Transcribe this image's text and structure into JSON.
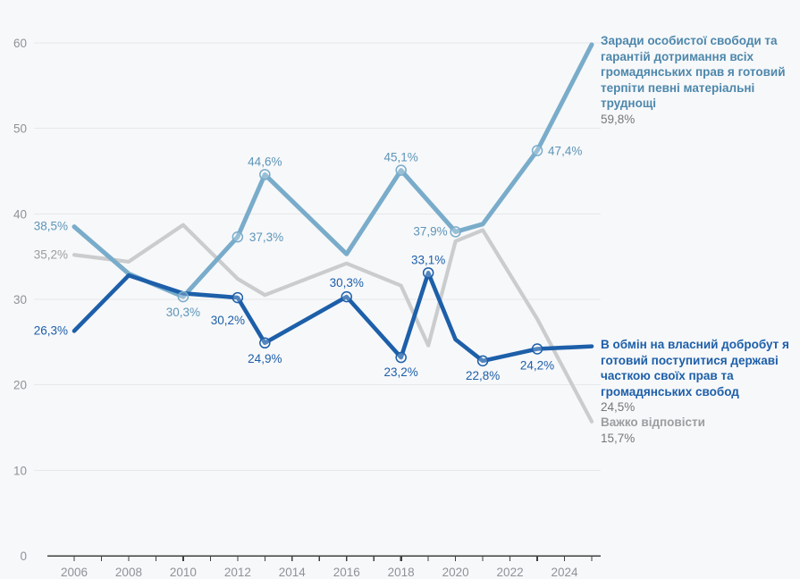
{
  "page": {
    "background": "#f7f8fa",
    "grid_color": "#e7e8ea",
    "axis_color": "#3f3f3f",
    "axis_label_color": "#8f9296"
  },
  "chart_data": {
    "type": "line",
    "title": "",
    "xlabel": "",
    "ylabel": "",
    "xlim": [
      2006,
      2025
    ],
    "ylim": [
      0,
      60
    ],
    "grid": true,
    "legend_position": "right",
    "y_ticks": [
      0,
      10,
      20,
      30,
      40,
      50,
      60
    ],
    "x_ticks": [
      2006,
      2007,
      2008,
      2009,
      2010,
      2011,
      2012,
      2013,
      2014,
      2015,
      2016,
      2017,
      2018,
      2019,
      2020,
      2021,
      2022,
      2023,
      2024,
      2025
    ],
    "x_label_years": [
      2006,
      2008,
      2010,
      2012,
      2014,
      2016,
      2018,
      2020,
      2022,
      2024
    ],
    "emphasized_x_ticks": [
      2010,
      2018,
      2023
    ],
    "series": [
      {
        "id": "hard-to-say",
        "name": "Важко відповісти",
        "color": "#cbcccd",
        "label_color": "#9b9da0",
        "stroke_width": 4.2,
        "final_value": "15,7%",
        "points": [
          {
            "x": 2006,
            "y": 35.2,
            "label": "35,2%",
            "anchor": "end",
            "dx": -7,
            "dy": 4
          },
          {
            "x": 2008,
            "y": 34.4
          },
          {
            "x": 2010,
            "y": 38.7
          },
          {
            "x": 2012,
            "y": 32.4
          },
          {
            "x": 2013,
            "y": 30.5
          },
          {
            "x": 2016,
            "y": 34.2
          },
          {
            "x": 2018,
            "y": 31.6
          },
          {
            "x": 2019,
            "y": 24.6
          },
          {
            "x": 2020,
            "y": 36.8
          },
          {
            "x": 2021,
            "y": 38.1
          },
          {
            "x": 2023,
            "y": 27.7
          },
          {
            "x": 2025,
            "y": 15.7
          }
        ]
      },
      {
        "id": "freedom",
        "name": "Заради особистої свободи та гарантій дотримання всіх громадянських прав я готовий терпіти певні матеріальні труднощі",
        "color": "#79acca",
        "label_color": "#5d95b8",
        "stroke_width": 5,
        "final_value": "59,8%",
        "points": [
          {
            "x": 2006,
            "y": 38.5,
            "label": "38,5%",
            "anchor": "end",
            "dx": -7,
            "dy": 4
          },
          {
            "x": 2008,
            "y": 33.0
          },
          {
            "x": 2010,
            "y": 30.3,
            "label": "30,3%",
            "marker": true,
            "anchor": "middle",
            "dx": 0,
            "dy": 22
          },
          {
            "x": 2012,
            "y": 37.3,
            "label": "37,3%",
            "marker": true,
            "anchor": "start",
            "dx": 13,
            "dy": 5
          },
          {
            "x": 2013,
            "y": 44.6,
            "label": "44,6%",
            "marker": true,
            "anchor": "middle",
            "dx": 0,
            "dy": -10
          },
          {
            "x": 2016,
            "y": 35.3
          },
          {
            "x": 2018,
            "y": 45.1,
            "label": "45,1%",
            "marker": true,
            "anchor": "middle",
            "dx": 0,
            "dy": -10
          },
          {
            "x": 2020,
            "y": 37.9,
            "label": "37,9%",
            "marker": true,
            "anchor": "end",
            "dx": -9,
            "dy": 4
          },
          {
            "x": 2021,
            "y": 38.8
          },
          {
            "x": 2023,
            "y": 47.4,
            "label": "47,4%",
            "marker": true,
            "anchor": "start",
            "dx": 12,
            "dy": 5
          },
          {
            "x": 2025,
            "y": 59.8
          }
        ]
      },
      {
        "id": "tradeoff",
        "name": "В обмін на власний добробут я готовий поступитися державі часткою своїх прав та громадянських свобод",
        "color": "#1d5fa9",
        "label_color": "#1d5fa9",
        "stroke_width": 4.6,
        "final_value": "24,5%",
        "points": [
          {
            "x": 2006,
            "y": 26.3,
            "label": "26,3%",
            "anchor": "end",
            "dx": -7,
            "dy": 4
          },
          {
            "x": 2008,
            "y": 32.8
          },
          {
            "x": 2010,
            "y": 30.7
          },
          {
            "x": 2012,
            "y": 30.2,
            "label": "30,2%",
            "marker": true,
            "anchor": "middle",
            "dx": -11,
            "dy": 30
          },
          {
            "x": 2013,
            "y": 24.9,
            "label": "24,9%",
            "marker": true,
            "anchor": "middle",
            "dx": 0,
            "dy": 22
          },
          {
            "x": 2016,
            "y": 30.3,
            "label": "30,3%",
            "marker": true,
            "anchor": "middle",
            "dx": 0,
            "dy": -11
          },
          {
            "x": 2018,
            "y": 23.2,
            "label": "23,2%",
            "marker": true,
            "anchor": "middle",
            "dx": 0,
            "dy": 21
          },
          {
            "x": 2019,
            "y": 33.1,
            "label": "33,1%",
            "marker": true,
            "anchor": "middle",
            "dx": 0,
            "dy": -10
          },
          {
            "x": 2020,
            "y": 25.3
          },
          {
            "x": 2021,
            "y": 22.8,
            "label": "22,8%",
            "marker": true,
            "anchor": "middle",
            "dx": 0,
            "dy": 21
          },
          {
            "x": 2023,
            "y": 24.2,
            "label": "24,2%",
            "marker": true,
            "anchor": "middle",
            "dx": 0,
            "dy": 23
          },
          {
            "x": 2025,
            "y": 24.5
          }
        ]
      }
    ],
    "legend": {
      "freedom": {
        "lines": [
          "Заради особистої свободи та",
          "гарантій дотримання всіх",
          "громадянських прав я готовий",
          "терпіти певні матеріальні",
          "труднощі"
        ],
        "value": "59,8%"
      },
      "tradeoff": {
        "lines": [
          "В обмін на власний добробут я",
          "готовий поступитися державі",
          "часткою своїх прав та",
          "громадянських свобод"
        ],
        "value": "24,5%"
      },
      "hard": {
        "lines": [
          "Важко відповісти"
        ],
        "value": "15,7%"
      }
    }
  }
}
